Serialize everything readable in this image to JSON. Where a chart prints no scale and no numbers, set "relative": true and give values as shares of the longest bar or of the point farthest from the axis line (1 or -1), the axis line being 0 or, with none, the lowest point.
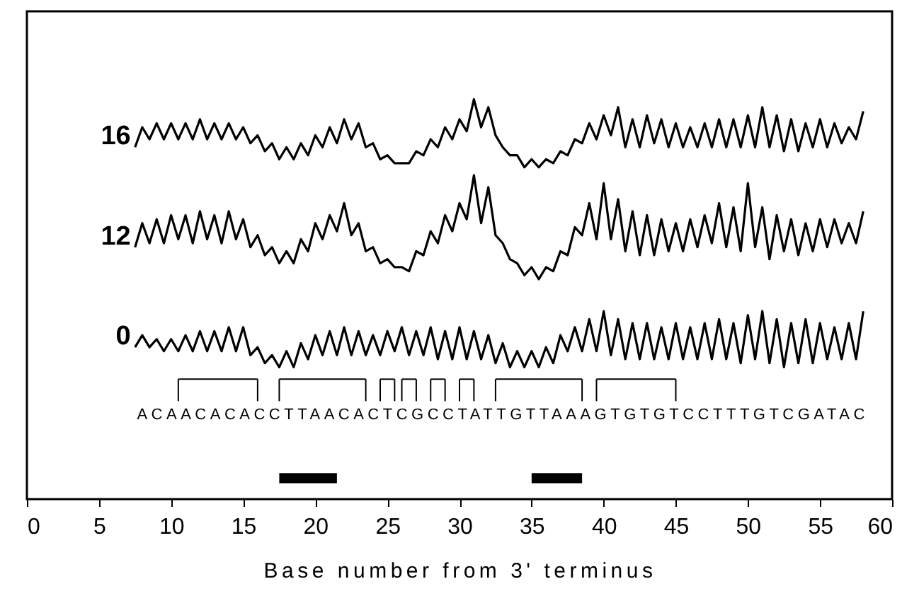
{
  "chart_data": {
    "type": "line",
    "relative": true,
    "xlabel": "Base number from 3' terminus",
    "xlim": [
      0,
      60
    ],
    "xticks": [
      0,
      5,
      10,
      15,
      20,
      25,
      30,
      35,
      40,
      45,
      50,
      55,
      60
    ],
    "x": [
      7.5,
      8,
      8.5,
      9,
      9.5,
      10,
      10.5,
      11,
      11.5,
      12,
      12.5,
      13,
      13.5,
      14,
      14.5,
      15,
      15.5,
      16,
      16.5,
      17,
      17.5,
      18,
      18.5,
      19,
      19.5,
      20,
      20.5,
      21,
      21.5,
      22,
      22.5,
      23,
      23.5,
      24,
      24.5,
      25,
      25.5,
      26,
      26.5,
      27,
      27.5,
      28,
      28.5,
      29,
      29.5,
      30,
      30.5,
      31,
      31.5,
      32,
      32.5,
      33,
      33.5,
      34,
      34.5,
      35,
      35.5,
      36,
      36.5,
      37,
      37.5,
      38,
      38.5,
      39,
      39.5,
      40,
      40.5,
      41,
      41.5,
      42,
      42.5,
      43,
      43.5,
      44,
      44.5,
      45,
      45.5,
      46,
      46.5,
      47,
      47.5,
      48,
      48.5,
      49,
      49.5,
      50,
      50.5,
      51,
      51.5,
      52,
      52.5,
      53,
      53.5,
      54,
      54.5,
      55,
      55.5,
      56,
      56.5,
      57,
      57.5,
      58
    ],
    "series": [
      {
        "name": "16",
        "color": "#000000",
        "values": [
          0.88,
          0.93,
          0.9,
          0.94,
          0.9,
          0.94,
          0.9,
          0.94,
          0.9,
          0.95,
          0.9,
          0.94,
          0.9,
          0.94,
          0.9,
          0.93,
          0.89,
          0.91,
          0.87,
          0.89,
          0.85,
          0.88,
          0.85,
          0.89,
          0.86,
          0.91,
          0.88,
          0.93,
          0.89,
          0.95,
          0.9,
          0.94,
          0.88,
          0.89,
          0.85,
          0.86,
          0.84,
          0.84,
          0.84,
          0.87,
          0.86,
          0.9,
          0.88,
          0.93,
          0.9,
          0.95,
          0.92,
          1.0,
          0.93,
          0.98,
          0.91,
          0.88,
          0.86,
          0.86,
          0.83,
          0.85,
          0.83,
          0.85,
          0.84,
          0.87,
          0.86,
          0.9,
          0.89,
          0.94,
          0.9,
          0.96,
          0.91,
          0.98,
          0.88,
          0.95,
          0.88,
          0.96,
          0.89,
          0.95,
          0.88,
          0.94,
          0.88,
          0.93,
          0.88,
          0.94,
          0.88,
          0.95,
          0.88,
          0.95,
          0.88,
          0.96,
          0.88,
          0.98,
          0.88,
          0.96,
          0.87,
          0.95,
          0.87,
          0.94,
          0.88,
          0.95,
          0.88,
          0.94,
          0.89,
          0.93,
          0.9,
          0.97
        ]
      },
      {
        "name": "12",
        "color": "#000000",
        "values": [
          0.63,
          0.69,
          0.64,
          0.7,
          0.64,
          0.71,
          0.65,
          0.71,
          0.64,
          0.72,
          0.65,
          0.71,
          0.64,
          0.72,
          0.65,
          0.7,
          0.63,
          0.66,
          0.61,
          0.63,
          0.59,
          0.62,
          0.59,
          0.65,
          0.62,
          0.69,
          0.65,
          0.71,
          0.67,
          0.74,
          0.66,
          0.69,
          0.62,
          0.63,
          0.59,
          0.6,
          0.58,
          0.58,
          0.57,
          0.62,
          0.61,
          0.67,
          0.64,
          0.71,
          0.67,
          0.74,
          0.7,
          0.81,
          0.69,
          0.78,
          0.66,
          0.64,
          0.6,
          0.59,
          0.56,
          0.58,
          0.55,
          0.58,
          0.57,
          0.62,
          0.61,
          0.68,
          0.66,
          0.74,
          0.65,
          0.79,
          0.65,
          0.75,
          0.62,
          0.72,
          0.61,
          0.71,
          0.61,
          0.7,
          0.62,
          0.69,
          0.62,
          0.7,
          0.63,
          0.71,
          0.64,
          0.74,
          0.63,
          0.73,
          0.62,
          0.79,
          0.63,
          0.73,
          0.6,
          0.71,
          0.62,
          0.7,
          0.61,
          0.69,
          0.62,
          0.7,
          0.63,
          0.7,
          0.64,
          0.69,
          0.64,
          0.72
        ]
      },
      {
        "name": "0",
        "color": "#000000",
        "values": [
          0.38,
          0.41,
          0.38,
          0.4,
          0.37,
          0.4,
          0.37,
          0.41,
          0.37,
          0.42,
          0.37,
          0.42,
          0.37,
          0.43,
          0.37,
          0.43,
          0.36,
          0.38,
          0.34,
          0.36,
          0.33,
          0.37,
          0.33,
          0.39,
          0.35,
          0.41,
          0.36,
          0.42,
          0.36,
          0.43,
          0.36,
          0.42,
          0.36,
          0.41,
          0.36,
          0.42,
          0.37,
          0.43,
          0.36,
          0.42,
          0.36,
          0.43,
          0.35,
          0.42,
          0.35,
          0.43,
          0.35,
          0.42,
          0.35,
          0.41,
          0.34,
          0.39,
          0.33,
          0.37,
          0.33,
          0.37,
          0.33,
          0.38,
          0.34,
          0.41,
          0.37,
          0.43,
          0.37,
          0.45,
          0.37,
          0.47,
          0.36,
          0.45,
          0.35,
          0.44,
          0.35,
          0.44,
          0.35,
          0.43,
          0.35,
          0.44,
          0.35,
          0.43,
          0.35,
          0.44,
          0.35,
          0.45,
          0.35,
          0.44,
          0.34,
          0.46,
          0.35,
          0.47,
          0.34,
          0.45,
          0.33,
          0.44,
          0.34,
          0.45,
          0.34,
          0.44,
          0.35,
          0.43,
          0.35,
          0.44,
          0.35,
          0.47
        ]
      }
    ],
    "annotations": [
      "ACAACACACCTTAACACTCGCCTATTGTTAAAGTGTGTCCTTTGTCGATAC"
    ],
    "grid": false,
    "legend": false,
    "line_style": "solid",
    "marker": "none"
  }
}
